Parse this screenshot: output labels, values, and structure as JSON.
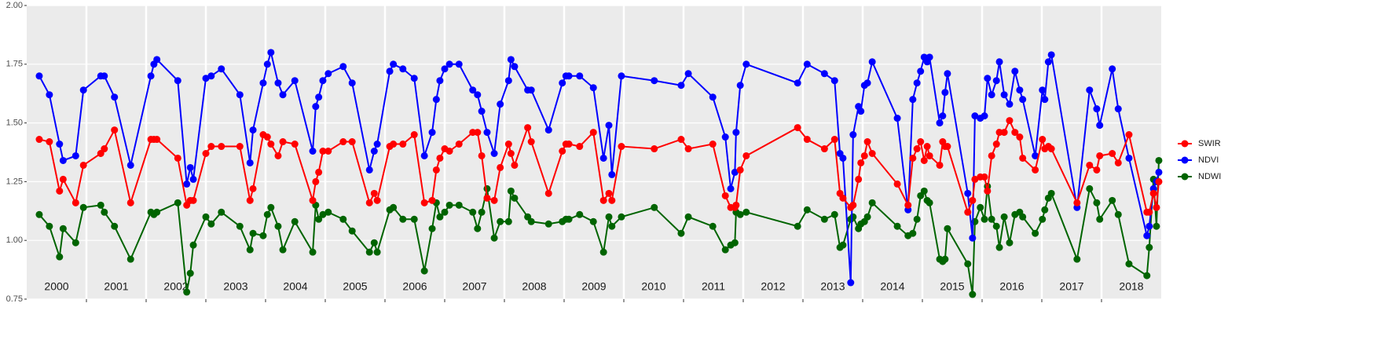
{
  "chart_data": {
    "type": "line",
    "x": [
      2000.21,
      2000.38,
      2000.55,
      2000.61,
      2000.82,
      2000.95,
      2001.24,
      2001.3,
      2001.47,
      2001.74,
      2002.08,
      2002.13,
      2002.18,
      2002.53,
      2002.68,
      2002.74,
      2002.79,
      2003.0,
      2003.09,
      2003.26,
      2003.57,
      2003.74,
      2003.79,
      2003.96,
      2004.03,
      2004.09,
      2004.21,
      2004.29,
      2004.49,
      2004.79,
      2004.84,
      2004.89,
      2004.96,
      2005.05,
      2005.3,
      2005.45,
      2005.74,
      2005.82,
      2005.87,
      2006.08,
      2006.14,
      2006.3,
      2006.49,
      2006.66,
      2006.79,
      2006.86,
      2006.92,
      2007.0,
      2007.08,
      2007.24,
      2007.47,
      2007.55,
      2007.62,
      2007.71,
      2007.83,
      2007.93,
      2008.07,
      2008.11,
      2008.17,
      2008.39,
      2008.45,
      2008.74,
      2008.97,
      2009.03,
      2009.08,
      2009.26,
      2009.49,
      2009.66,
      2009.75,
      2009.8,
      2009.96,
      2010.51,
      2010.96,
      2011.08,
      2011.49,
      2011.7,
      2011.79,
      2011.86,
      2011.88,
      2011.95,
      2012.05,
      2012.91,
      2013.07,
      2013.36,
      2013.53,
      2013.62,
      2013.67,
      2013.8,
      2013.84,
      2013.93,
      2013.97,
      2014.03,
      2014.08,
      2014.16,
      2014.58,
      2014.76,
      2014.84,
      2014.91,
      2014.97,
      2015.03,
      2015.08,
      2015.12,
      2015.29,
      2015.34,
      2015.38,
      2015.42,
      2015.76,
      2015.84,
      2015.88,
      2015.97,
      2016.04,
      2016.09,
      2016.16,
      2016.24,
      2016.29,
      2016.37,
      2016.46,
      2016.55,
      2016.63,
      2016.68,
      2016.89,
      2017.01,
      2017.05,
      2017.11,
      2017.16,
      2017.59,
      2017.8,
      2017.92,
      2017.97,
      2018.18,
      2018.28,
      2018.46,
      2018.76,
      2018.8,
      2018.87,
      2018.92,
      2018.96
    ],
    "series": [
      {
        "name": "SWIR",
        "color": "#ff0000",
        "values": [
          1.43,
          1.42,
          1.21,
          1.26,
          1.16,
          1.32,
          1.37,
          1.39,
          1.47,
          1.16,
          1.43,
          1.43,
          1.43,
          1.35,
          1.15,
          1.17,
          1.17,
          1.37,
          1.4,
          1.4,
          1.4,
          1.17,
          1.22,
          1.45,
          1.44,
          1.41,
          1.36,
          1.42,
          1.41,
          1.17,
          1.25,
          1.29,
          1.38,
          1.38,
          1.42,
          1.42,
          1.16,
          1.2,
          1.17,
          1.4,
          1.41,
          1.41,
          1.45,
          1.16,
          1.17,
          1.3,
          1.35,
          1.39,
          1.38,
          1.41,
          1.46,
          1.46,
          1.36,
          1.18,
          1.17,
          1.31,
          1.41,
          1.37,
          1.32,
          1.48,
          1.42,
          1.2,
          1.38,
          1.41,
          1.41,
          1.4,
          1.46,
          1.17,
          1.2,
          1.17,
          1.4,
          1.39,
          1.43,
          1.39,
          1.41,
          1.19,
          1.14,
          1.14,
          1.15,
          1.3,
          1.36,
          1.48,
          1.43,
          1.39,
          1.43,
          1.2,
          1.18,
          1.14,
          1.15,
          1.26,
          1.33,
          1.36,
          1.42,
          1.37,
          1.24,
          1.15,
          1.35,
          1.39,
          1.42,
          1.34,
          1.4,
          1.36,
          1.32,
          1.42,
          1.4,
          1.4,
          1.12,
          1.17,
          1.26,
          1.27,
          1.27,
          1.21,
          1.36,
          1.41,
          1.46,
          1.46,
          1.51,
          1.46,
          1.44,
          1.35,
          1.3,
          1.43,
          1.39,
          1.4,
          1.39,
          1.16,
          1.32,
          1.3,
          1.36,
          1.37,
          1.33,
          1.45,
          1.12,
          1.12,
          1.2,
          1.14,
          1.25
        ]
      },
      {
        "name": "NDVI",
        "color": "#0000ff",
        "values": [
          1.7,
          1.62,
          1.41,
          1.34,
          1.36,
          1.64,
          1.7,
          1.7,
          1.61,
          1.32,
          1.7,
          1.75,
          1.77,
          1.68,
          1.24,
          1.31,
          1.26,
          1.69,
          1.7,
          1.73,
          1.62,
          1.33,
          1.47,
          1.67,
          1.75,
          1.8,
          1.67,
          1.62,
          1.68,
          1.38,
          1.57,
          1.61,
          1.68,
          1.71,
          1.74,
          1.67,
          1.3,
          1.38,
          1.41,
          1.72,
          1.75,
          1.73,
          1.69,
          1.36,
          1.46,
          1.6,
          1.68,
          1.73,
          1.75,
          1.75,
          1.64,
          1.62,
          1.55,
          1.46,
          1.37,
          1.58,
          1.68,
          1.77,
          1.74,
          1.64,
          1.64,
          1.47,
          1.67,
          1.7,
          1.7,
          1.7,
          1.65,
          1.35,
          1.49,
          1.28,
          1.7,
          1.68,
          1.66,
          1.71,
          1.61,
          1.44,
          1.22,
          1.29,
          1.46,
          1.66,
          1.75,
          1.67,
          1.75,
          1.71,
          1.68,
          1.37,
          1.35,
          0.82,
          1.45,
          1.57,
          1.55,
          1.66,
          1.67,
          1.76,
          1.52,
          1.13,
          1.6,
          1.67,
          1.72,
          1.78,
          1.76,
          1.78,
          1.5,
          1.53,
          1.63,
          1.71,
          1.2,
          1.01,
          1.53,
          1.52,
          1.53,
          1.69,
          1.62,
          1.68,
          1.76,
          1.62,
          1.58,
          1.72,
          1.64,
          1.6,
          1.36,
          1.64,
          1.6,
          1.76,
          1.79,
          1.14,
          1.64,
          1.56,
          1.49,
          1.73,
          1.56,
          1.35,
          1.02,
          1.06,
          1.22,
          1.25,
          1.29
        ]
      },
      {
        "name": "NDWI",
        "color": "#006400",
        "values": [
          1.11,
          1.06,
          0.93,
          1.05,
          0.99,
          1.14,
          1.15,
          1.12,
          1.06,
          0.92,
          1.12,
          1.11,
          1.12,
          1.16,
          0.78,
          0.86,
          0.98,
          1.1,
          1.07,
          1.12,
          1.06,
          0.96,
          1.03,
          1.02,
          1.11,
          1.14,
          1.06,
          0.96,
          1.08,
          0.95,
          1.15,
          1.09,
          1.11,
          1.12,
          1.09,
          1.04,
          0.95,
          0.99,
          0.95,
          1.13,
          1.14,
          1.09,
          1.09,
          0.87,
          1.05,
          1.16,
          1.1,
          1.12,
          1.15,
          1.15,
          1.12,
          1.05,
          1.12,
          1.22,
          1.01,
          1.08,
          1.08,
          1.21,
          1.18,
          1.1,
          1.08,
          1.07,
          1.08,
          1.09,
          1.09,
          1.11,
          1.08,
          0.95,
          1.1,
          1.06,
          1.1,
          1.14,
          1.03,
          1.1,
          1.06,
          0.96,
          0.98,
          0.99,
          1.12,
          1.11,
          1.12,
          1.06,
          1.13,
          1.09,
          1.11,
          0.97,
          0.98,
          1.09,
          1.1,
          1.05,
          1.07,
          1.08,
          1.1,
          1.16,
          1.06,
          1.02,
          1.03,
          1.09,
          1.19,
          1.21,
          1.17,
          1.16,
          0.92,
          0.91,
          0.92,
          1.05,
          0.9,
          0.77,
          1.08,
          1.14,
          1.09,
          1.23,
          1.09,
          1.06,
          0.97,
          1.1,
          0.99,
          1.11,
          1.12,
          1.1,
          1.03,
          1.09,
          1.13,
          1.18,
          1.2,
          0.92,
          1.22,
          1.16,
          1.09,
          1.17,
          1.11,
          0.9,
          0.85,
          0.97,
          1.26,
          1.06,
          1.34
        ]
      }
    ],
    "xlim": [
      2000,
      2019
    ],
    "xticks": [
      2001,
      2002,
      2003,
      2004,
      2005,
      2006,
      2007,
      2008,
      2009,
      2010,
      2011,
      2012,
      2013,
      2014,
      2015,
      2016,
      2017,
      2018
    ],
    "year_labels": [
      2000,
      2001,
      2002,
      2003,
      2004,
      2005,
      2006,
      2007,
      2008,
      2009,
      2010,
      2011,
      2012,
      2013,
      2014,
      2015,
      2016,
      2017,
      2018
    ],
    "ylim": [
      0.75,
      2.0
    ],
    "yticks": [
      {
        "value": 0.75,
        "label": "0.75"
      },
      {
        "value": 1.0,
        "label": "1.00"
      },
      {
        "value": 1.25,
        "label": "1.25"
      },
      {
        "value": 1.5,
        "label": "1.50"
      },
      {
        "value": 1.75,
        "label": "1.75"
      },
      {
        "value": 2.0,
        "label": "2.00"
      }
    ],
    "grid": true,
    "legend": "right"
  }
}
